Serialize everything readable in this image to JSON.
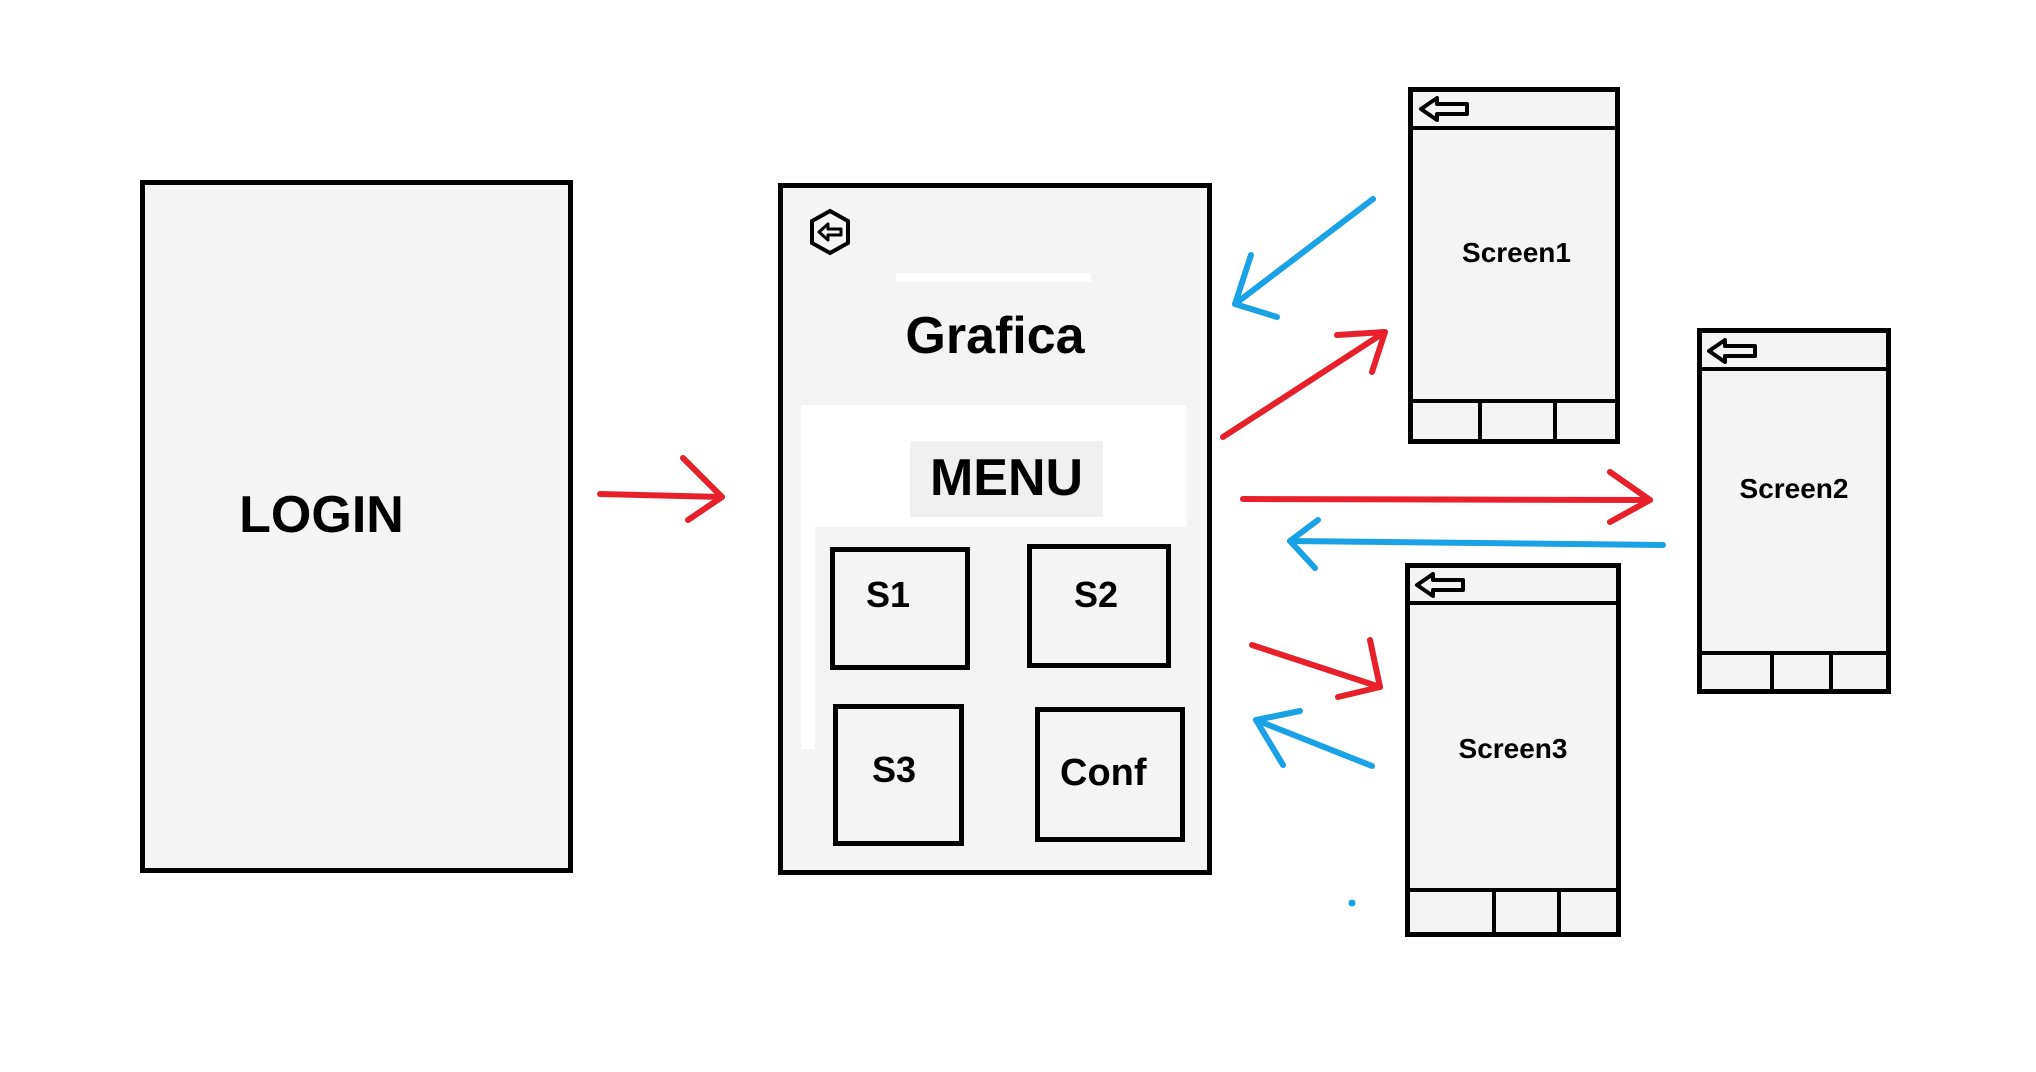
{
  "login": {
    "title": "LOGIN"
  },
  "main": {
    "title": "Grafica",
    "menu_label": "MENU",
    "buttons": [
      "S1",
      "S2",
      "S3",
      "Conf"
    ]
  },
  "screens": [
    {
      "title": "Screen1"
    },
    {
      "title": "Screen2"
    },
    {
      "title": "Screen3"
    }
  ],
  "colors": {
    "forward_arrow": "#e8202a",
    "back_arrow": "#19a2e6",
    "stroke": "#000000",
    "fill": "#f4f4f4"
  },
  "icons": [
    "back-arrow-icon",
    "hexagon-back-icon"
  ]
}
